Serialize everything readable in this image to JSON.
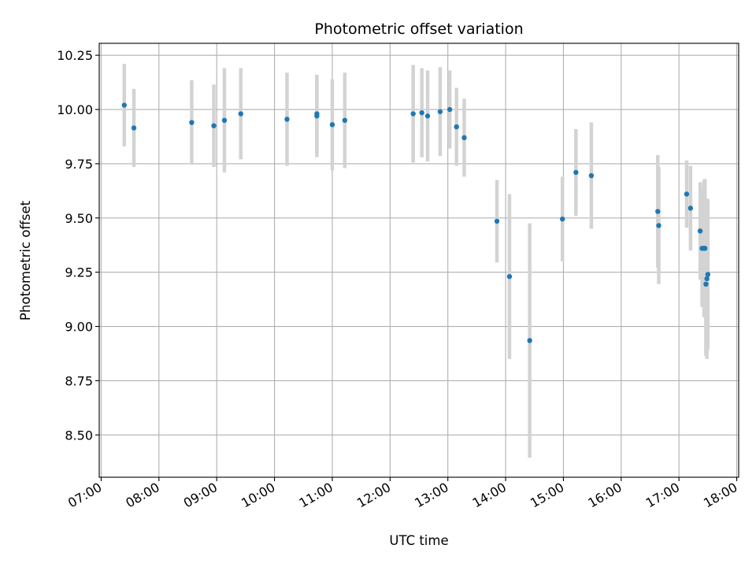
{
  "chart_data": {
    "type": "scatter",
    "title": "Photometric offset variation",
    "xlabel": "UTC time",
    "ylabel": "Photometric offset",
    "xlim": [
      "06:58",
      "18:02"
    ],
    "ylim": [
      8.305,
      10.305
    ],
    "x_ticks": [
      "07:00",
      "08:00",
      "09:00",
      "10:00",
      "11:00",
      "12:00",
      "13:00",
      "14:00",
      "15:00",
      "16:00",
      "17:00",
      "18:00"
    ],
    "y_ticks": [
      "8.50",
      "8.75",
      "9.00",
      "9.25",
      "9.50",
      "9.75",
      "10.00",
      "10.25"
    ],
    "grid": true,
    "colors": {
      "point": "#1f77b4",
      "errorbar": "#d3d3d3",
      "grid": "#b0b0b0"
    },
    "series": [
      {
        "points": [
          {
            "x": "07:24",
            "y": 10.02,
            "yerr": 0.19
          },
          {
            "x": "07:34",
            "y": 9.915,
            "yerr": 0.18
          },
          {
            "x": "08:34",
            "y": 9.94,
            "yerr": 0.195
          },
          {
            "x": "08:57",
            "y": 9.925,
            "yerr": 0.19
          },
          {
            "x": "09:08",
            "y": 9.95,
            "yerr": 0.24
          },
          {
            "x": "09:25",
            "y": 9.98,
            "yerr": 0.21
          },
          {
            "x": "10:13",
            "y": 9.955,
            "yerr": 0.215
          },
          {
            "x": "10:44",
            "y": 9.98,
            "yerr": 0.18
          },
          {
            "x": "10:44",
            "y": 9.97,
            "yerr": 0.19
          },
          {
            "x": "11:00",
            "y": 9.93,
            "yerr": 0.21
          },
          {
            "x": "11:13",
            "y": 9.95,
            "yerr": 0.22
          },
          {
            "x": "12:24",
            "y": 9.98,
            "yerr": 0.225
          },
          {
            "x": "12:33",
            "y": 9.985,
            "yerr": 0.205
          },
          {
            "x": "12:39",
            "y": 9.97,
            "yerr": 0.21
          },
          {
            "x": "12:52",
            "y": 9.99,
            "yerr": 0.205
          },
          {
            "x": "13:02",
            "y": 10.0,
            "yerr": 0.18
          },
          {
            "x": "13:09",
            "y": 9.92,
            "yerr": 0.18
          },
          {
            "x": "13:17",
            "y": 9.87,
            "yerr": 0.18
          },
          {
            "x": "13:51",
            "y": 9.485,
            "yerr": 0.19
          },
          {
            "x": "14:04",
            "y": 9.23,
            "yerr": 0.38
          },
          {
            "x": "14:25",
            "y": 8.935,
            "yerr": 0.54
          },
          {
            "x": "14:59",
            "y": 9.495,
            "yerr": 0.195
          },
          {
            "x": "15:13",
            "y": 9.71,
            "yerr": 0.2
          },
          {
            "x": "15:29",
            "y": 9.695,
            "yerr": 0.245
          },
          {
            "x": "16:38",
            "y": 9.53,
            "yerr": 0.26
          },
          {
            "x": "16:39",
            "y": 9.465,
            "yerr": 0.27
          },
          {
            "x": "17:08",
            "y": 9.61,
            "yerr": 0.155
          },
          {
            "x": "17:12",
            "y": 9.545,
            "yerr": 0.195
          },
          {
            "x": "17:22",
            "y": 9.44,
            "yerr": 0.225
          },
          {
            "x": "17:24",
            "y": 9.36,
            "yerr": 0.27
          },
          {
            "x": "17:26",
            "y": 9.36,
            "yerr": 0.315
          },
          {
            "x": "17:27",
            "y": 9.36,
            "yerr": 0.32
          },
          {
            "x": "17:28",
            "y": 9.195,
            "yerr": 0.33
          },
          {
            "x": "17:29",
            "y": 9.22,
            "yerr": 0.37
          },
          {
            "x": "17:30",
            "y": 9.24,
            "yerr": 0.345
          }
        ]
      }
    ]
  }
}
